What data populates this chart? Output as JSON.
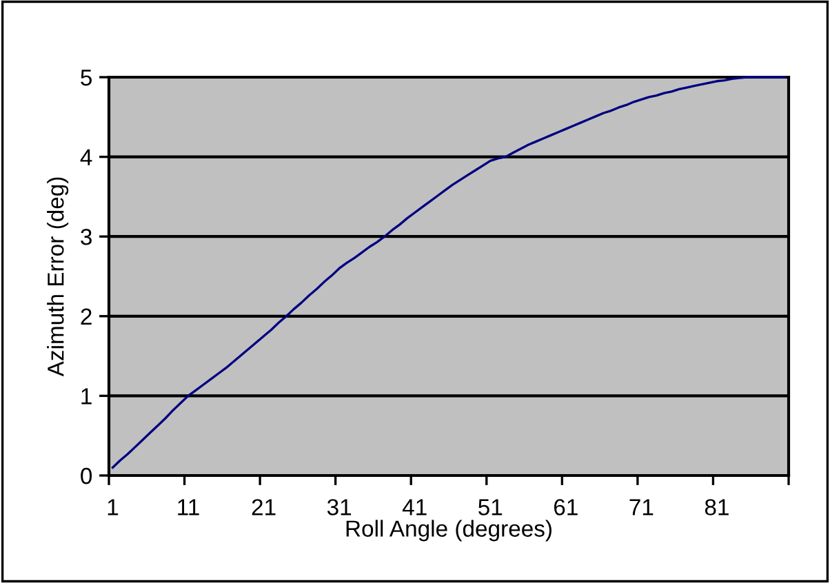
{
  "chart_data": {
    "type": "line",
    "xlabel": "Roll Angle (degrees)",
    "ylabel": "Azimuth Error (deg)",
    "categories": [
      "1",
      null,
      null,
      null,
      null,
      null,
      null,
      null,
      null,
      null,
      "11",
      null,
      null,
      null,
      null,
      null,
      null,
      null,
      null,
      null,
      "21",
      null,
      null,
      null,
      null,
      null,
      null,
      null,
      null,
      null,
      "31",
      null,
      null,
      null,
      null,
      null,
      null,
      null,
      null,
      null,
      "41",
      null,
      null,
      null,
      null,
      null,
      null,
      null,
      null,
      null,
      "51",
      null,
      null,
      null,
      null,
      null,
      null,
      null,
      null,
      null,
      "61",
      null,
      null,
      null,
      null,
      null,
      null,
      null,
      null,
      null,
      "71",
      null,
      null,
      null,
      null,
      null,
      null,
      null,
      null,
      null,
      "81",
      null,
      null,
      null,
      null,
      null,
      null,
      null,
      null,
      null
    ],
    "series": [
      {
        "color": "#000080",
        "values": [
          0.1,
          0.19,
          0.27,
          0.36,
          0.45,
          0.54,
          0.63,
          0.72,
          0.82,
          0.91,
          1.0,
          1.07,
          1.14,
          1.21,
          1.28,
          1.35,
          1.43,
          1.51,
          1.59,
          1.67,
          1.75,
          1.83,
          1.92,
          2.0,
          2.09,
          2.17,
          2.26,
          2.34,
          2.43,
          2.51,
          2.6,
          2.67,
          2.73,
          2.8,
          2.87,
          2.93,
          3.0,
          3.08,
          3.15,
          3.23,
          3.3,
          3.37,
          3.44,
          3.51,
          3.58,
          3.65,
          3.71,
          3.77,
          3.83,
          3.89,
          3.95,
          3.98,
          4.0,
          4.05,
          4.1,
          4.15,
          4.19,
          4.23,
          4.27,
          4.31,
          4.35,
          4.39,
          4.43,
          4.47,
          4.51,
          4.55,
          4.58,
          4.62,
          4.65,
          4.69,
          4.72,
          4.75,
          4.77,
          4.8,
          4.82,
          4.85,
          4.87,
          4.89,
          4.91,
          4.93,
          4.95,
          4.96,
          4.98,
          4.99,
          5.0,
          5.0,
          5.0,
          5.0,
          5.0,
          5.0
        ]
      }
    ],
    "ylim": [
      0,
      5
    ],
    "yticks": [
      0,
      1,
      2,
      3,
      4,
      5
    ],
    "grid": "y",
    "marker": "none",
    "line_style": "solid",
    "legend": false
  }
}
